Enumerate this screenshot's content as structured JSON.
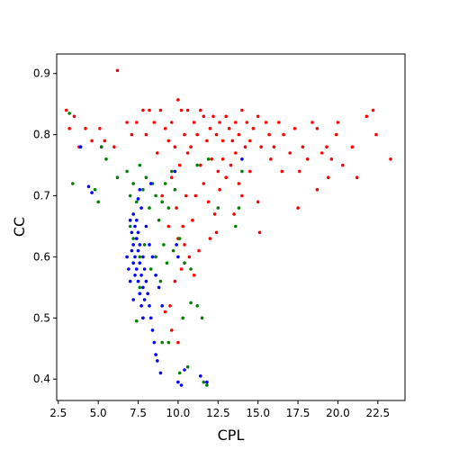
{
  "chart_data": {
    "type": "scatter",
    "title": "",
    "xlabel": "CPL",
    "ylabel": "CC",
    "xlim": [
      2.4,
      24.2
    ],
    "ylim": [
      0.365,
      0.932
    ],
    "xticks": [
      "2.5",
      "5.0",
      "7.5",
      "10.0",
      "12.5",
      "15.0",
      "17.5",
      "20.0",
      "22.5"
    ],
    "yticks": [
      "0.4",
      "0.5",
      "0.6",
      "0.7",
      "0.8",
      "0.9"
    ],
    "grid": false,
    "legend": "none",
    "series": [
      {
        "color": "#ff0000",
        "points": [
          [
            3.0,
            0.84
          ],
          [
            3.2,
            0.81
          ],
          [
            3.5,
            0.83
          ],
          [
            3.8,
            0.78
          ],
          [
            4.2,
            0.81
          ],
          [
            4.6,
            0.79
          ],
          [
            5.1,
            0.81
          ],
          [
            5.4,
            0.79
          ],
          [
            5.2,
            0.78
          ],
          [
            6.0,
            0.78
          ],
          [
            6.2,
            0.905
          ],
          [
            6.8,
            0.82
          ],
          [
            7.1,
            0.8
          ],
          [
            7.4,
            0.82
          ],
          [
            7.8,
            0.84
          ],
          [
            8.0,
            0.8
          ],
          [
            8.2,
            0.84
          ],
          [
            8.5,
            0.82
          ],
          [
            8.7,
            0.77
          ],
          [
            8.9,
            0.84
          ],
          [
            9.2,
            0.81
          ],
          [
            9.4,
            0.79
          ],
          [
            9.6,
            0.82
          ],
          [
            9.8,
            0.78
          ],
          [
            10.0,
            0.857
          ],
          [
            10.2,
            0.84
          ],
          [
            10.4,
            0.8
          ],
          [
            10.6,
            0.84
          ],
          [
            10.8,
            0.78
          ],
          [
            11.0,
            0.82
          ],
          [
            11.2,
            0.8
          ],
          [
            11.4,
            0.84
          ],
          [
            11.6,
            0.83
          ],
          [
            11.8,
            0.79
          ],
          [
            12.0,
            0.81
          ],
          [
            12.2,
            0.83
          ],
          [
            12.4,
            0.8
          ],
          [
            12.6,
            0.82
          ],
          [
            12.8,
            0.79
          ],
          [
            13.0,
            0.83
          ],
          [
            13.2,
            0.81
          ],
          [
            13.4,
            0.79
          ],
          [
            13.6,
            0.82
          ],
          [
            13.8,
            0.8
          ],
          [
            14.0,
            0.84
          ],
          [
            14.3,
            0.82
          ],
          [
            14.5,
            0.79
          ],
          [
            14.7,
            0.81
          ],
          [
            15.0,
            0.83
          ],
          [
            15.2,
            0.78
          ],
          [
            15.5,
            0.82
          ],
          [
            15.7,
            0.8
          ],
          [
            16.0,
            0.78
          ],
          [
            16.3,
            0.82
          ],
          [
            16.6,
            0.8
          ],
          [
            17.0,
            0.77
          ],
          [
            17.3,
            0.81
          ],
          [
            17.6,
            0.74
          ],
          [
            17.8,
            0.78
          ],
          [
            18.1,
            0.76
          ],
          [
            18.4,
            0.82
          ],
          [
            18.7,
            0.81
          ],
          [
            19.0,
            0.77
          ],
          [
            19.3,
            0.78
          ],
          [
            19.6,
            0.76
          ],
          [
            19.9,
            0.8
          ],
          [
            20.0,
            0.82
          ],
          [
            20.3,
            0.75
          ],
          [
            20.9,
            0.78
          ],
          [
            21.2,
            0.73
          ],
          [
            21.8,
            0.83
          ],
          [
            22.2,
            0.84
          ],
          [
            22.4,
            0.8
          ],
          [
            23.3,
            0.76
          ],
          [
            17.5,
            0.68
          ],
          [
            18.7,
            0.71
          ],
          [
            19.4,
            0.73
          ],
          [
            15.1,
            0.64
          ],
          [
            15.0,
            0.69
          ],
          [
            14.0,
            0.7
          ],
          [
            13.5,
            0.67
          ],
          [
            13.8,
            0.72
          ],
          [
            14.5,
            0.74
          ],
          [
            12.0,
            0.63
          ],
          [
            11.3,
            0.61
          ],
          [
            10.7,
            0.6
          ],
          [
            10.2,
            0.58
          ],
          [
            9.8,
            0.56
          ],
          [
            9.5,
            0.52
          ],
          [
            9.2,
            0.51
          ],
          [
            9.6,
            0.48
          ],
          [
            10.0,
            0.46
          ],
          [
            11.0,
            0.57
          ],
          [
            10.4,
            0.62
          ],
          [
            9.4,
            0.65
          ],
          [
            9.9,
            0.68
          ],
          [
            9.0,
            0.7
          ],
          [
            9.6,
            0.73
          ],
          [
            10.1,
            0.75
          ],
          [
            10.6,
            0.77
          ],
          [
            11.6,
            0.72
          ],
          [
            11.9,
            0.69
          ],
          [
            12.3,
            0.67
          ],
          [
            12.6,
            0.71
          ],
          [
            13.0,
            0.73
          ],
          [
            13.3,
            0.75
          ],
          [
            13.6,
            0.77
          ],
          [
            12.1,
            0.76
          ],
          [
            11.4,
            0.75
          ],
          [
            11.1,
            0.7
          ],
          [
            10.9,
            0.66
          ],
          [
            10.3,
            0.65
          ],
          [
            10.0,
            0.63
          ],
          [
            10.5,
            0.7
          ],
          [
            12.8,
            0.76
          ],
          [
            14.2,
            0.78
          ],
          [
            15.8,
            0.76
          ],
          [
            16.5,
            0.74
          ],
          [
            12.4,
            0.64
          ],
          [
            12.5,
            0.74
          ]
        ]
      },
      {
        "color": "#008000",
        "points": [
          [
            3.2,
            0.835
          ],
          [
            3.4,
            0.72
          ],
          [
            4.8,
            0.71
          ],
          [
            5.0,
            0.69
          ],
          [
            5.2,
            0.78
          ],
          [
            5.5,
            0.76
          ],
          [
            6.2,
            0.73
          ],
          [
            6.8,
            0.74
          ],
          [
            7.0,
            0.7
          ],
          [
            7.2,
            0.72
          ],
          [
            7.4,
            0.69
          ],
          [
            7.6,
            0.75
          ],
          [
            7.8,
            0.71
          ],
          [
            8.0,
            0.73
          ],
          [
            8.2,
            0.68
          ],
          [
            8.4,
            0.72
          ],
          [
            8.6,
            0.7
          ],
          [
            8.8,
            0.66
          ],
          [
            9.0,
            0.69
          ],
          [
            9.2,
            0.72
          ],
          [
            9.4,
            0.68
          ],
          [
            9.6,
            0.74
          ],
          [
            9.8,
            0.71
          ],
          [
            7.0,
            0.65
          ],
          [
            7.2,
            0.63
          ],
          [
            7.6,
            0.6
          ],
          [
            7.9,
            0.62
          ],
          [
            8.3,
            0.58
          ],
          [
            8.6,
            0.6
          ],
          [
            8.9,
            0.56
          ],
          [
            9.1,
            0.62
          ],
          [
            9.3,
            0.59
          ],
          [
            9.7,
            0.61
          ],
          [
            10.1,
            0.63
          ],
          [
            10.4,
            0.59
          ],
          [
            10.8,
            0.58
          ],
          [
            7.6,
            0.55
          ],
          [
            7.8,
            0.5
          ],
          [
            7.4,
            0.495
          ],
          [
            9.0,
            0.46
          ],
          [
            9.4,
            0.46
          ],
          [
            10.1,
            0.41
          ],
          [
            10.6,
            0.42
          ],
          [
            11.2,
            0.52
          ],
          [
            11.5,
            0.5
          ],
          [
            11.8,
            0.39
          ],
          [
            11.6,
            0.395
          ],
          [
            10.8,
            0.525
          ],
          [
            10.3,
            0.5
          ],
          [
            11.2,
            0.75
          ],
          [
            11.9,
            0.76
          ],
          [
            12.5,
            0.68
          ],
          [
            13.6,
            0.65
          ],
          [
            13.8,
            0.68
          ],
          [
            14.0,
            0.74
          ]
        ]
      },
      {
        "color": "#0000ff",
        "points": [
          [
            3.9,
            0.78
          ],
          [
            4.4,
            0.715
          ],
          [
            4.6,
            0.705
          ],
          [
            7.0,
            0.66
          ],
          [
            7.1,
            0.64
          ],
          [
            7.2,
            0.62
          ],
          [
            7.3,
            0.6
          ],
          [
            7.4,
            0.58
          ],
          [
            7.5,
            0.56
          ],
          [
            7.6,
            0.54
          ],
          [
            7.7,
            0.52
          ],
          [
            7.8,
            0.5
          ],
          [
            7.2,
            0.67
          ],
          [
            7.3,
            0.65
          ],
          [
            7.4,
            0.63
          ],
          [
            7.5,
            0.61
          ],
          [
            7.6,
            0.59
          ],
          [
            7.7,
            0.57
          ],
          [
            7.8,
            0.55
          ],
          [
            7.9,
            0.53
          ],
          [
            7.1,
            0.61
          ],
          [
            7.2,
            0.59
          ],
          [
            7.3,
            0.57
          ],
          [
            7.4,
            0.66
          ],
          [
            7.5,
            0.64
          ],
          [
            7.6,
            0.62
          ],
          [
            7.7,
            0.68
          ],
          [
            7.8,
            0.6
          ],
          [
            7.9,
            0.58
          ],
          [
            8.0,
            0.56
          ],
          [
            8.1,
            0.54
          ],
          [
            8.2,
            0.52
          ],
          [
            8.3,
            0.5
          ],
          [
            8.4,
            0.48
          ],
          [
            8.5,
            0.46
          ],
          [
            8.6,
            0.44
          ],
          [
            8.7,
            0.43
          ],
          [
            8.9,
            0.41
          ],
          [
            8.2,
            0.62
          ],
          [
            8.0,
            0.65
          ],
          [
            8.4,
            0.6
          ],
          [
            7.0,
            0.56
          ],
          [
            7.2,
            0.53
          ],
          [
            6.9,
            0.58
          ],
          [
            6.8,
            0.6
          ],
          [
            7.5,
            0.695
          ],
          [
            7.6,
            0.71
          ],
          [
            8.3,
            0.72
          ],
          [
            9.8,
            0.74
          ],
          [
            9.9,
            0.62
          ],
          [
            10.0,
            0.6
          ],
          [
            10.0,
            0.395
          ],
          [
            10.2,
            0.39
          ],
          [
            10.4,
            0.415
          ],
          [
            11.4,
            0.405
          ],
          [
            11.8,
            0.395
          ],
          [
            14.0,
            0.76
          ],
          [
            8.6,
            0.57
          ],
          [
            8.8,
            0.55
          ],
          [
            9.0,
            0.52
          ]
        ]
      }
    ]
  }
}
